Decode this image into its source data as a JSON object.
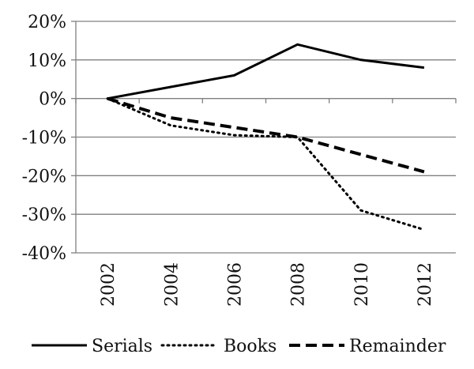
{
  "chart_data": {
    "type": "line",
    "title": "",
    "xlabel": "",
    "ylabel": "",
    "x": [
      2002,
      2004,
      2006,
      2008,
      2010,
      2012
    ],
    "x_tick_labels": [
      "2002",
      "2004",
      "2006",
      "2008",
      "2010",
      "2012"
    ],
    "ylim": [
      -40,
      20
    ],
    "y_ticks": [
      20,
      10,
      0,
      -10,
      -20,
      -30,
      -40
    ],
    "y_tick_labels": [
      "20%",
      "10%",
      "0%",
      "-10%",
      "-20%",
      "-30%",
      "-40%"
    ],
    "grid": "horizontal",
    "legend_position": "bottom",
    "series": [
      {
        "name": "Serials",
        "style": "solid",
        "values": [
          0,
          3,
          6,
          14,
          10,
          8
        ]
      },
      {
        "name": "Books",
        "style": "dotted",
        "values": [
          0,
          -7,
          -9.5,
          -10,
          -29,
          -34
        ]
      },
      {
        "name": "Remainder",
        "style": "dashed",
        "values": [
          0,
          -5,
          -7.5,
          -10,
          -14.5,
          -19
        ]
      }
    ],
    "colors": {
      "line": "#000000",
      "grid": "#808080",
      "axis": "#808080"
    }
  }
}
